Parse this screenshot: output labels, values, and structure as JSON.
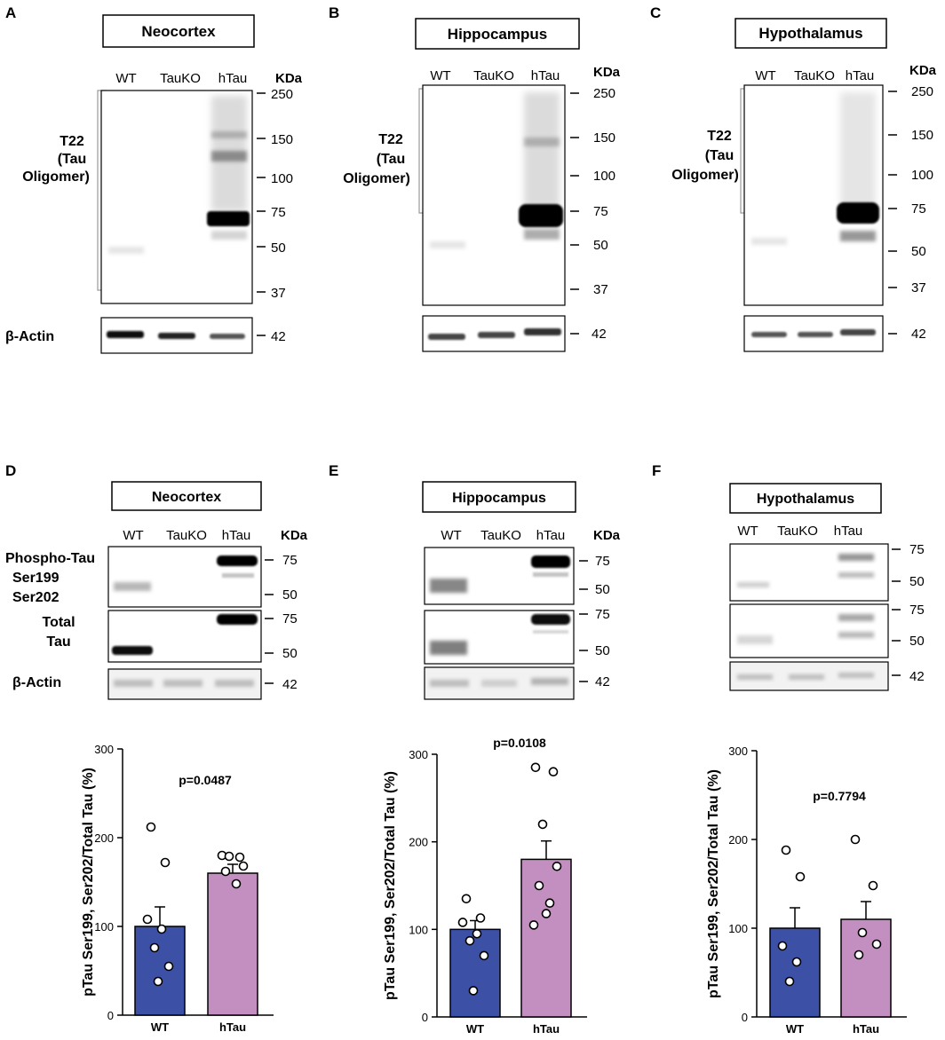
{
  "panel_letters": [
    "A",
    "B",
    "C",
    "D",
    "E",
    "F"
  ],
  "kda_label": "KDa",
  "lanes3": [
    "WT",
    "TauKO",
    "hTau"
  ],
  "t22_label": [
    "T22",
    "(Tau",
    "Oligomer)"
  ],
  "actin_label": "β-Actin",
  "phospho_label": [
    "Phospho-Tau",
    "Ser199",
    "Ser202"
  ],
  "total_label": [
    "Total",
    "Tau"
  ],
  "regions": [
    "Neocortex",
    "Hippocampus",
    "Hypothalamus"
  ],
  "markers_top": [
    "250",
    "150",
    "100",
    "75",
    "50",
    "37"
  ],
  "marker_actin": "42",
  "markers_pair": [
    "75",
    "50"
  ],
  "chart_data": [
    {
      "type": "bar",
      "panel": "D",
      "title": "p=0.0487",
      "categories": [
        "WT",
        "hTau"
      ],
      "values": [
        100,
        160
      ],
      "sem": [
        22,
        10
      ],
      "points": [
        [
          212,
          172,
          108,
          97,
          76,
          55,
          38
        ],
        [
          180,
          178,
          179,
          168,
          162,
          148
        ]
      ],
      "colors": [
        "#3c50a5",
        "#c38ec0"
      ],
      "ylabel": "pTau Ser199, Ser202/Total Tau (%)",
      "ylim": [
        0,
        300
      ],
      "yticks": [
        "0",
        "100",
        "200",
        "300"
      ]
    },
    {
      "type": "bar",
      "panel": "E",
      "title": "p=0.0108",
      "categories": [
        "WT",
        "hTau"
      ],
      "values": [
        100,
        180
      ],
      "sem": [
        10,
        21
      ],
      "points": [
        [
          135,
          113,
          108,
          95,
          87,
          70,
          30
        ],
        [
          285,
          280,
          220,
          172,
          150,
          130,
          118,
          105
        ]
      ],
      "colors": [
        "#3c50a5",
        "#c38ec0"
      ],
      "ylabel": "pTau Ser199, Ser202/Total Tau (%)",
      "ylim": [
        0,
        300
      ],
      "yticks": [
        "0",
        "100",
        "200",
        "300"
      ]
    },
    {
      "type": "bar",
      "panel": "F",
      "title": "p=0.7794",
      "categories": [
        "WT",
        "hTau"
      ],
      "values": [
        100,
        110
      ],
      "sem": [
        23,
        20
      ],
      "points": [
        [
          188,
          158,
          80,
          62,
          40
        ],
        [
          200,
          148,
          95,
          82,
          70
        ]
      ],
      "colors": [
        "#3c50a5",
        "#c38ec0"
      ],
      "ylabel": "pTau Ser199, Ser202/Total Tau (%)",
      "ylim": [
        0,
        300
      ],
      "yticks": [
        "0",
        "100",
        "200",
        "300"
      ]
    }
  ]
}
